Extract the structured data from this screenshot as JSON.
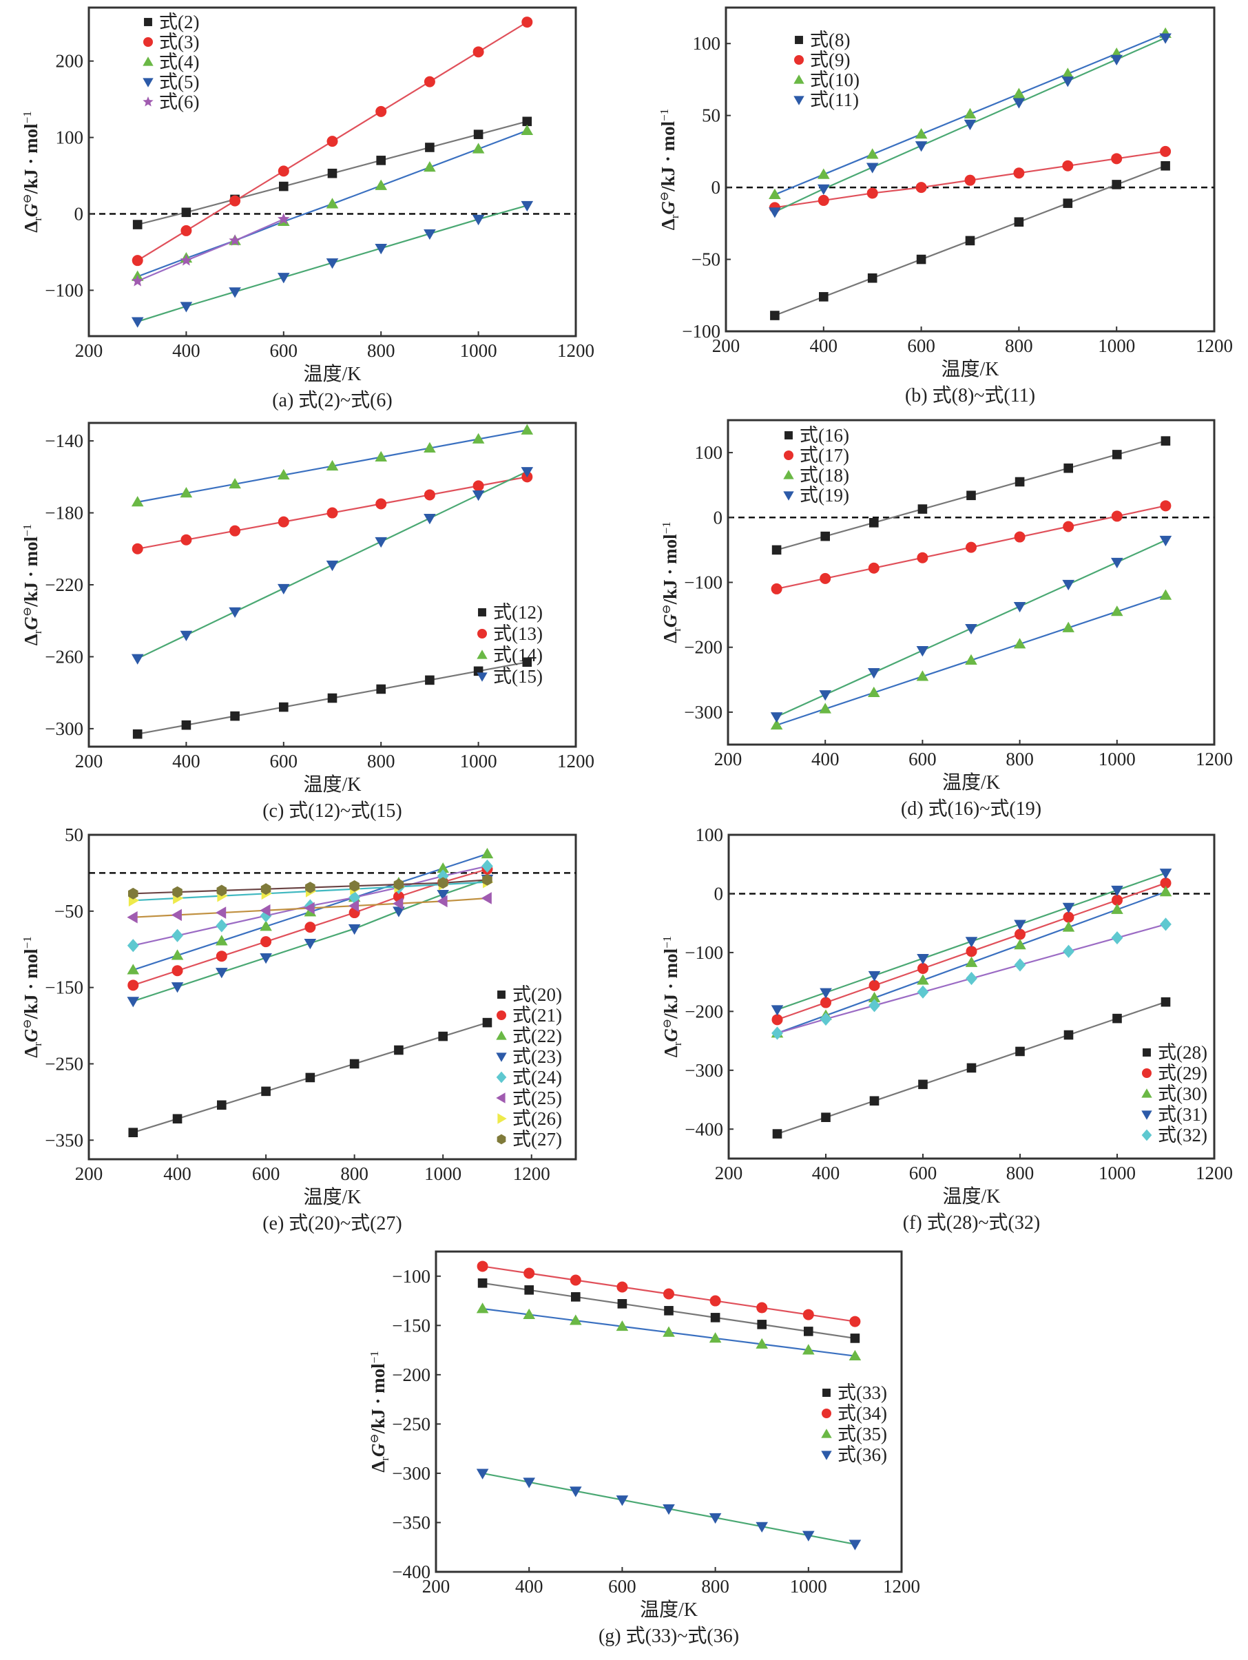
{
  "figure": {
    "x_label": "温度/K",
    "y_label_delta": "Δ",
    "y_label_sub": "r",
    "y_label_main": "G",
    "y_label_sup": "⊖",
    "y_label_unit": "/kJ · mol",
    "y_label_unit_sup": "−1"
  },
  "colors": {
    "black": "#222222",
    "red": "#e8302c",
    "green": "#6ab845",
    "blue": "#2c5aa8",
    "purple": "#a05bb0",
    "cyan": "#5ec8d0",
    "yellow": "#eeea4a",
    "olive": "#7f7a3a",
    "gray_line": "#777777",
    "red_line": "#e0505a",
    "blue_line": "#3a70c0",
    "green_line": "#4aa873",
    "purple_line": "#9b6bc4",
    "orange_line": "#c09040",
    "cyan_line": "#40b8c0",
    "brown_line": "#6b4545",
    "zero_line": "#111111"
  },
  "chart_data": [
    {
      "id": "a",
      "type": "line",
      "caption": "(a) 式(2)~式(6)",
      "xlabel": "温度/K",
      "ylabel": "ΔrG⊖/kJ · mol−1",
      "xlim": [
        200,
        1200
      ],
      "ylim": [
        -160,
        270
      ],
      "xticks": [
        200,
        400,
        600,
        800,
        1000,
        1200
      ],
      "yticks": [
        -100,
        0,
        100,
        200
      ],
      "zero_line": true,
      "legend": "top-left",
      "x": [
        300,
        400,
        500,
        600,
        700,
        800,
        900,
        1000,
        1100
      ],
      "series": [
        {
          "name": "式(2)",
          "marker": "square",
          "marker_color": "black",
          "line_color": "gray_line",
          "values": [
            -14,
            2,
            19,
            36,
            53,
            70,
            87,
            104,
            121
          ]
        },
        {
          "name": "式(3)",
          "marker": "circle",
          "marker_color": "red",
          "line_color": "red_line",
          "values": [
            -61,
            -22,
            17,
            56,
            95,
            134,
            173,
            212,
            251
          ]
        },
        {
          "name": "式(4)",
          "marker": "triangle-up",
          "marker_color": "green",
          "line_color": "blue_line",
          "values": [
            -82,
            -58,
            -35,
            -10,
            13,
            37,
            61,
            85,
            109
          ]
        },
        {
          "name": "式(5)",
          "marker": "triangle-down",
          "marker_color": "blue",
          "line_color": "green_line",
          "values": [
            -141,
            -121,
            -102,
            -83,
            -64,
            -45,
            -26,
            -7,
            11
          ]
        },
        {
          "name": "式(6)",
          "marker": "star",
          "marker_color": "purple",
          "line_color": "purple_line",
          "values": [
            -88,
            -61,
            -35,
            -7,
            null,
            null,
            null,
            null,
            null
          ]
        }
      ]
    },
    {
      "id": "b",
      "type": "line",
      "caption": "(b) 式(8)~式(11)",
      "xlabel": "温度/K",
      "ylabel": "ΔrG⊖/kJ · mol−1",
      "xlim": [
        200,
        1200
      ],
      "ylim": [
        -100,
        125
      ],
      "xticks": [
        200,
        400,
        600,
        800,
        1000,
        1200
      ],
      "yticks": [
        -100,
        -50,
        0,
        50,
        100
      ],
      "zero_line": true,
      "legend": "top-left",
      "x": [
        300,
        400,
        500,
        600,
        700,
        800,
        900,
        1000,
        1100
      ],
      "series": [
        {
          "name": "式(8)",
          "marker": "square",
          "marker_color": "black",
          "line_color": "gray_line",
          "values": [
            -89,
            -76,
            -63,
            -50,
            -37,
            -24,
            -11,
            2,
            15
          ]
        },
        {
          "name": "式(9)",
          "marker": "circle",
          "marker_color": "red",
          "line_color": "red_line",
          "values": [
            -14,
            -9,
            -4,
            0,
            5,
            10,
            15,
            20,
            25
          ]
        },
        {
          "name": "式(10)",
          "marker": "triangle-up",
          "marker_color": "green",
          "line_color": "blue_line",
          "values": [
            -5,
            9,
            23,
            37,
            51,
            65,
            79,
            93,
            107
          ]
        },
        {
          "name": "式(11)",
          "marker": "triangle-down",
          "marker_color": "blue",
          "line_color": "green_line",
          "values": [
            -17,
            -1,
            14,
            29,
            44,
            59,
            74,
            89,
            104
          ]
        }
      ]
    },
    {
      "id": "c",
      "type": "line",
      "caption": "(c) 式(12)~式(15)",
      "xlabel": "温度/K",
      "ylabel": "ΔrG⊖/kJ · mol−1",
      "xlim": [
        200,
        1200
      ],
      "ylim": [
        -310,
        -130
      ],
      "xticks": [
        200,
        400,
        600,
        800,
        1000,
        1200
      ],
      "yticks": [
        -300,
        -260,
        -220,
        -180,
        -140
      ],
      "zero_line": false,
      "legend": "center-right",
      "x": [
        300,
        400,
        500,
        600,
        700,
        800,
        900,
        1000,
        1100
      ],
      "series": [
        {
          "name": "式(12)",
          "marker": "square",
          "marker_color": "black",
          "line_color": "gray_line",
          "values": [
            -303,
            -298,
            -293,
            -288,
            -283,
            -278,
            -273,
            -268,
            -263
          ]
        },
        {
          "name": "式(13)",
          "marker": "circle",
          "marker_color": "red",
          "line_color": "red_line",
          "values": [
            -200,
            -195,
            -190,
            -185,
            -180,
            -175,
            -170,
            -165,
            -160
          ]
        },
        {
          "name": "式(14)",
          "marker": "triangle-up",
          "marker_color": "green",
          "line_color": "blue_line",
          "values": [
            -174,
            -169,
            -164,
            -159,
            -154,
            -149,
            -144,
            -139,
            -134
          ]
        },
        {
          "name": "式(15)",
          "marker": "triangle-down",
          "marker_color": "blue",
          "line_color": "green_line",
          "values": [
            -261,
            -248,
            -235,
            -222,
            -209,
            -196,
            -183,
            -170,
            -157
          ]
        }
      ]
    },
    {
      "id": "d",
      "type": "line",
      "caption": "(d) 式(16)~式(19)",
      "xlabel": "温度/K",
      "ylabel": "ΔrG⊖/kJ · mol−1",
      "xlim": [
        200,
        1200
      ],
      "ylim": [
        -350,
        150
      ],
      "xticks": [
        200,
        400,
        600,
        800,
        1000,
        1200
      ],
      "yticks": [
        -300,
        -200,
        -100,
        0,
        100
      ],
      "zero_line": true,
      "legend": "top-left",
      "x": [
        300,
        400,
        500,
        600,
        700,
        800,
        900,
        1000,
        1100
      ],
      "series": [
        {
          "name": "式(16)",
          "marker": "square",
          "marker_color": "black",
          "line_color": "gray_line",
          "values": [
            -50,
            -29,
            -8,
            13,
            34,
            55,
            76,
            97,
            118
          ]
        },
        {
          "name": "式(17)",
          "marker": "circle",
          "marker_color": "red",
          "line_color": "red_line",
          "values": [
            -110,
            -94,
            -78,
            -62,
            -46,
            -30,
            -14,
            2,
            18
          ]
        },
        {
          "name": "式(18)",
          "marker": "triangle-up",
          "marker_color": "green",
          "line_color": "blue_line",
          "values": [
            -320,
            -295,
            -270,
            -245,
            -220,
            -195,
            -170,
            -145,
            -120
          ]
        },
        {
          "name": "式(19)",
          "marker": "triangle-down",
          "marker_color": "blue",
          "line_color": "green_line",
          "values": [
            -307,
            -273,
            -239,
            -205,
            -171,
            -137,
            -103,
            -69,
            -35
          ]
        }
      ]
    },
    {
      "id": "e",
      "type": "line",
      "caption": "(e) 式(20)~式(27)",
      "xlabel": "温度/K",
      "ylabel": "ΔrG⊖/kJ · mol−1",
      "xlim": [
        200,
        1300
      ],
      "ylim": [
        -375,
        50
      ],
      "xticks": [
        200,
        400,
        600,
        800,
        1000,
        1200
      ],
      "yticks": [
        -350,
        -250,
        -150,
        -50,
        50
      ],
      "zero_line": true,
      "legend": "bottom-right",
      "x": [
        300,
        400,
        500,
        600,
        700,
        800,
        900,
        1000,
        1100
      ],
      "series": [
        {
          "name": "式(20)",
          "marker": "square",
          "marker_color": "black",
          "line_color": "gray_line",
          "values": [
            -340,
            -322,
            -304,
            -286,
            -268,
            -250,
            -232,
            -214,
            -196
          ]
        },
        {
          "name": "式(21)",
          "marker": "circle",
          "marker_color": "red",
          "line_color": "red_line",
          "values": [
            -147,
            -128,
            -109,
            -90,
            -71,
            -52,
            -31,
            -12,
            5
          ]
        },
        {
          "name": "式(22)",
          "marker": "triangle-up",
          "marker_color": "green",
          "line_color": "blue_line",
          "values": [
            -127,
            -108,
            -89,
            -70,
            -51,
            -32,
            -13,
            6,
            25
          ]
        },
        {
          "name": "式(23)",
          "marker": "triangle-down",
          "marker_color": "blue",
          "line_color": "green_line",
          "values": [
            -168,
            -149,
            -130,
            -111,
            -92,
            -73,
            -50,
            -28,
            -8
          ]
        },
        {
          "name": "式(24)",
          "marker": "diamond",
          "marker_color": "cyan",
          "line_color": "purple_line",
          "values": [
            -95,
            -82,
            -69,
            -56,
            -43,
            -32,
            -19,
            -4,
            9
          ]
        },
        {
          "name": "式(25)",
          "marker": "triangle-left",
          "marker_color": "purple",
          "line_color": "orange_line",
          "values": [
            -58,
            -55,
            -52,
            -49,
            -46,
            -43,
            -40,
            -37,
            -33
          ]
        },
        {
          "name": "式(26)",
          "marker": "triangle-right",
          "marker_color": "yellow",
          "line_color": "cyan_line",
          "values": [
            -36,
            -33,
            -30,
            -27,
            -24,
            -21,
            -18,
            -15,
            -12
          ]
        },
        {
          "name": "式(27)",
          "marker": "hexagon",
          "marker_color": "olive",
          "line_color": "brown_line",
          "values": [
            -27,
            -25,
            -23,
            -21,
            -19,
            -17,
            -15,
            -13,
            -9
          ]
        }
      ]
    },
    {
      "id": "f",
      "type": "line",
      "caption": "(f) 式(28)~式(32)",
      "xlabel": "温度/K",
      "ylabel": "ΔrG⊖/kJ · mol−1",
      "xlim": [
        200,
        1200
      ],
      "ylim": [
        -450,
        100
      ],
      "xticks": [
        200,
        400,
        600,
        800,
        1000,
        1200
      ],
      "yticks": [
        -400,
        -300,
        -200,
        -100,
        0,
        100
      ],
      "zero_line": true,
      "legend": "bottom-right",
      "x": [
        300,
        400,
        500,
        600,
        700,
        800,
        900,
        1000,
        1100
      ],
      "series": [
        {
          "name": "式(28)",
          "marker": "square",
          "marker_color": "black",
          "line_color": "gray_line",
          "values": [
            -408,
            -380,
            -352,
            -324,
            -296,
            -268,
            -240,
            -212,
            -184
          ]
        },
        {
          "name": "式(29)",
          "marker": "circle",
          "marker_color": "red",
          "line_color": "red_line",
          "values": [
            -214,
            -185,
            -156,
            -127,
            -98,
            -69,
            -40,
            -11,
            18
          ]
        },
        {
          "name": "式(30)",
          "marker": "triangle-up",
          "marker_color": "green",
          "line_color": "blue_line",
          "values": [
            -237,
            -207,
            -177,
            -147,
            -117,
            -87,
            -57,
            -27,
            3
          ]
        },
        {
          "name": "式(31)",
          "marker": "triangle-down",
          "marker_color": "blue",
          "line_color": "green_line",
          "values": [
            -197,
            -168,
            -139,
            -110,
            -81,
            -52,
            -23,
            6,
            35
          ]
        },
        {
          "name": "式(32)",
          "marker": "diamond",
          "marker_color": "cyan",
          "line_color": "purple_line",
          "values": [
            -237,
            -213,
            -190,
            -167,
            -144,
            -121,
            -98,
            -75,
            -52
          ]
        }
      ]
    },
    {
      "id": "g",
      "type": "line",
      "caption": "(g) 式(33)~式(36)",
      "xlabel": "温度/K",
      "ylabel": "ΔrG⊖/kJ · mol−1",
      "xlim": [
        200,
        1200
      ],
      "ylim": [
        -400,
        -75
      ],
      "xticks": [
        200,
        400,
        600,
        800,
        1000,
        1200
      ],
      "yticks": [
        -400,
        -350,
        -300,
        -250,
        -200,
        -150,
        -100
      ],
      "zero_line": false,
      "legend": "center-right",
      "x": [
        300,
        400,
        500,
        600,
        700,
        800,
        900,
        1000,
        1100
      ],
      "series": [
        {
          "name": "式(33)",
          "marker": "square",
          "marker_color": "black",
          "line_color": "gray_line",
          "values": [
            -107,
            -114,
            -121,
            -128,
            -135,
            -142,
            -149,
            -156,
            -163
          ]
        },
        {
          "name": "式(34)",
          "marker": "circle",
          "marker_color": "red",
          "line_color": "red_line",
          "values": [
            -90,
            -97,
            -104,
            -111,
            -118,
            -125,
            -132,
            -139,
            -146
          ]
        },
        {
          "name": "式(35)",
          "marker": "triangle-up",
          "marker_color": "green",
          "line_color": "blue_line",
          "values": [
            -133,
            -139,
            -145,
            -151,
            -157,
            -163,
            -169,
            -175,
            -181
          ]
        },
        {
          "name": "式(36)",
          "marker": "triangle-down",
          "marker_color": "blue",
          "line_color": "green_line",
          "values": [
            -300,
            -309,
            -318,
            -327,
            -336,
            -345,
            -354,
            -363,
            -372
          ]
        }
      ]
    }
  ]
}
